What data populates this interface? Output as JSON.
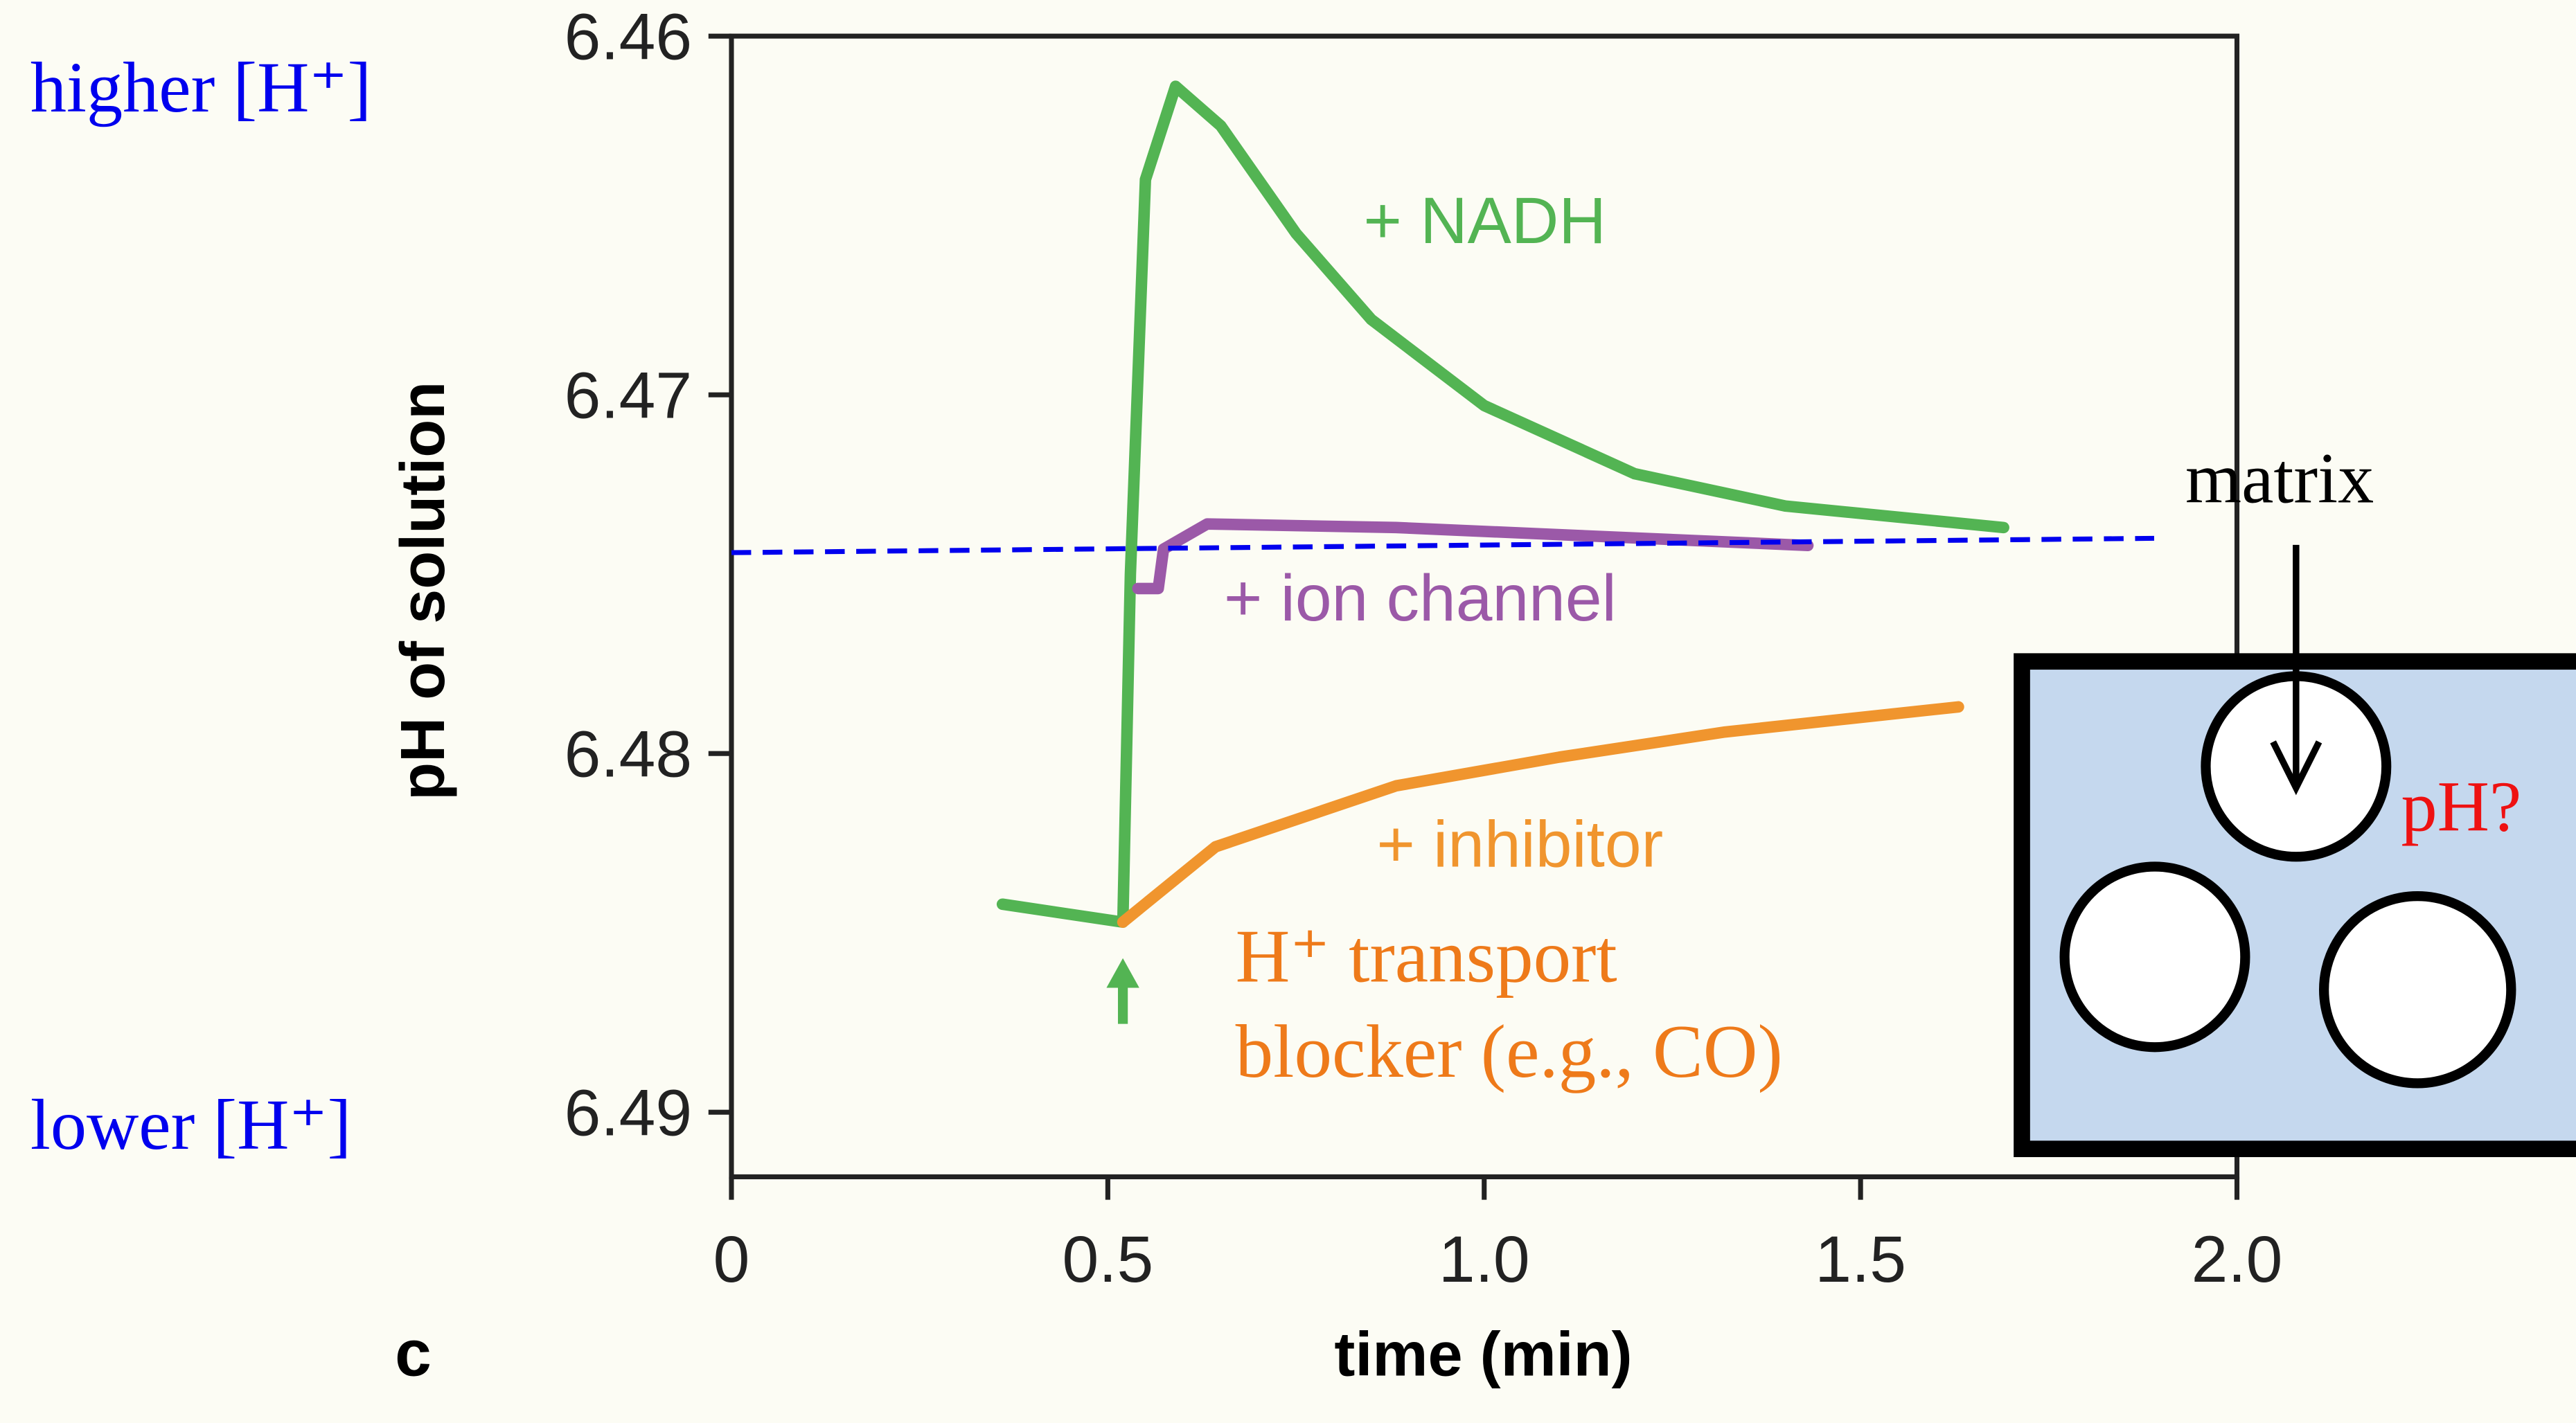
{
  "chart_data": {
    "type": "line",
    "panel_label": "c",
    "xlabel": "time (min)",
    "ylabel": "pH of solution",
    "xlim": [
      0,
      2.0
    ],
    "ylim": [
      6.4918,
      6.46
    ],
    "xticks": [
      0,
      0.5,
      {
        "value": 1.0,
        "label": "1.0"
      },
      1.5,
      {
        "value": 2.0,
        "label": "2.0"
      }
    ],
    "yticks": [
      6.46,
      6.47,
      6.48,
      6.49
    ],
    "series": [
      {
        "name": "+ NADH",
        "color": "#53b453",
        "x": [
          0.36,
          0.52,
          0.53,
          0.55,
          0.59,
          0.65,
          0.75,
          0.85,
          1.0,
          1.2,
          1.4,
          1.69
        ],
        "values": [
          6.4842,
          6.4847,
          6.475,
          6.464,
          6.4614,
          6.4625,
          6.4655,
          6.4679,
          6.4703,
          6.4722,
          6.4731,
          6.4737
        ]
      },
      {
        "name": "+ ion channel",
        "color": "#9b59a8",
        "x": [
          0.54,
          0.567,
          0.574,
          0.632,
          0.883,
          1.43
        ],
        "values": [
          6.4754,
          6.4754,
          6.4743,
          6.4736,
          6.4737,
          6.4742
        ]
      },
      {
        "name": "+ inhibitor",
        "color": "#f0952e",
        "x": [
          0.52,
          0.643,
          0.883,
          1.1,
          1.32,
          1.63
        ],
        "values": [
          6.4847,
          6.4826,
          6.4809,
          6.4801,
          6.4794,
          6.4787
        ]
      }
    ],
    "reference_line": {
      "color": "#0000ee",
      "x": [
        0,
        1.89
      ],
      "values": [
        6.4744,
        6.474
      ]
    },
    "annotations": [
      "H⁺ transport",
      "blocker (e.g., CO)"
    ],
    "side_labels": [
      "higher  [H⁺]",
      "lower [H⁺]"
    ]
  },
  "inset": {
    "label": "matrix",
    "question": "pH?"
  }
}
